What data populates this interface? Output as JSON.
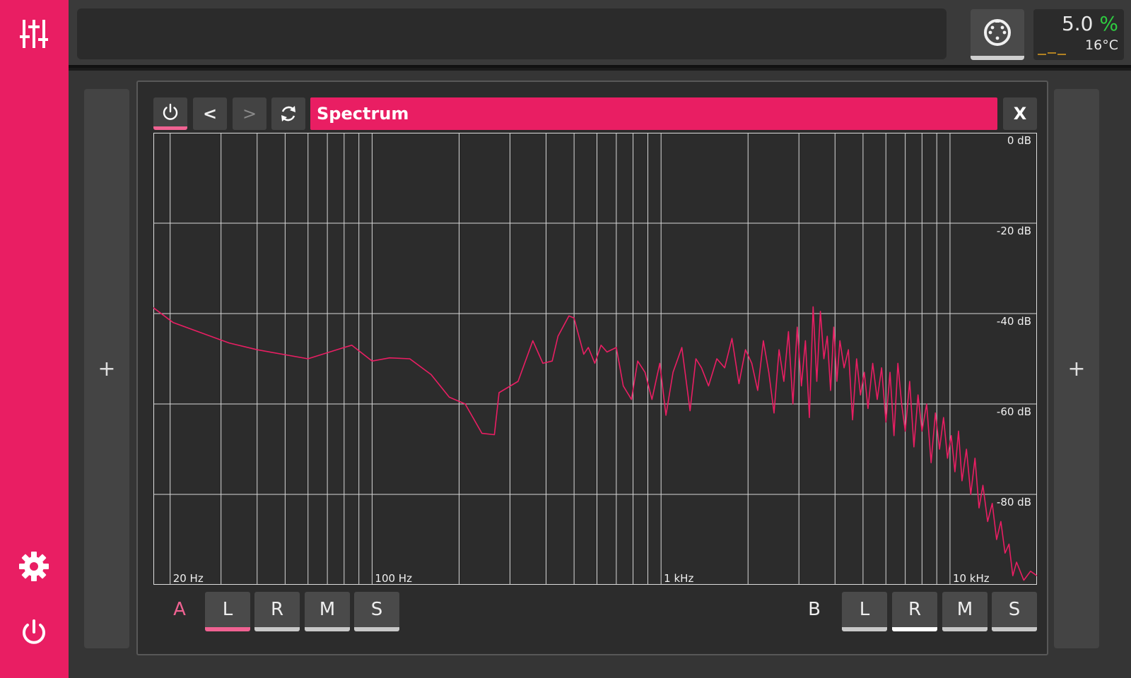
{
  "sidebar": {
    "mixer_icon": "sliders-icon",
    "settings_icon": "gear-icon",
    "power_icon": "power-icon"
  },
  "topbar": {
    "midi_icon": "midi-din-icon",
    "cpu_value": "5.0",
    "cpu_unit": "%",
    "temperature": "16°C"
  },
  "panel": {
    "add_left": "+",
    "add_right": "+",
    "prev_label": "<",
    "next_label": ">",
    "title": "Spectrum",
    "close_label": "X",
    "power_icon": "power-icon",
    "reload_icon": "refresh-icon"
  },
  "channels": {
    "a_label": "A",
    "b_label": "B",
    "a_buttons": [
      "L",
      "R",
      "M",
      "S"
    ],
    "b_buttons": [
      "L",
      "R",
      "M",
      "S"
    ],
    "a_selected": "L",
    "b_selected": "R"
  },
  "colors": {
    "accent": "#e91e63",
    "cpu_green": "#2ecc40"
  },
  "chart_data": {
    "type": "line",
    "x_scale": "log",
    "xlim": [
      17.5,
      20000
    ],
    "ylim": [
      -100,
      0
    ],
    "x_tick_labels": [
      {
        "value": 20,
        "label": "20 Hz"
      },
      {
        "value": 100,
        "label": "100 Hz"
      },
      {
        "value": 1000,
        "label": "1 kHz"
      },
      {
        "value": 10000,
        "label": "10 kHz"
      }
    ],
    "y_tick_labels": [
      {
        "value": 0,
        "label": "0 dB"
      },
      {
        "value": -20,
        "label": "-20 dB"
      },
      {
        "value": -40,
        "label": "-40 dB"
      },
      {
        "value": -60,
        "label": "-60 dB"
      },
      {
        "value": -80,
        "label": "-80 dB"
      }
    ],
    "grid": true,
    "series": [
      {
        "color": "#e91e63",
        "points": [
          [
            17.5,
            -38.7
          ],
          [
            20.5,
            -42
          ],
          [
            25,
            -44
          ],
          [
            32,
            -46.5
          ],
          [
            40,
            -48
          ],
          [
            60,
            -50
          ],
          [
            80,
            -47.5
          ],
          [
            85,
            -47
          ],
          [
            100,
            -50.5
          ],
          [
            115,
            -49.8
          ],
          [
            135,
            -50
          ],
          [
            160,
            -53.5
          ],
          [
            185,
            -58.5
          ],
          [
            210,
            -60
          ],
          [
            240,
            -66.5
          ],
          [
            265,
            -66.8
          ],
          [
            275,
            -57.5
          ],
          [
            320,
            -55
          ],
          [
            360,
            -46
          ],
          [
            390,
            -51
          ],
          [
            420,
            -50.5
          ],
          [
            440,
            -45
          ],
          [
            480,
            -40.5
          ],
          [
            500,
            -41
          ],
          [
            540,
            -49
          ],
          [
            560,
            -47.5
          ],
          [
            590,
            -51
          ],
          [
            620,
            -47
          ],
          [
            650,
            -48.5
          ],
          [
            700,
            -47.5
          ],
          [
            740,
            -56
          ],
          [
            790,
            -59
          ],
          [
            830,
            -50.5
          ],
          [
            880,
            -53
          ],
          [
            930,
            -59
          ],
          [
            990,
            -51
          ],
          [
            1040,
            -62.5
          ],
          [
            1100,
            -53
          ],
          [
            1180,
            -47.5
          ],
          [
            1260,
            -61.5
          ],
          [
            1320,
            -50
          ],
          [
            1380,
            -52
          ],
          [
            1460,
            -56
          ],
          [
            1560,
            -50
          ],
          [
            1660,
            -52
          ],
          [
            1760,
            -45.5
          ],
          [
            1860,
            -55.5
          ],
          [
            1960,
            -48
          ],
          [
            2060,
            -51
          ],
          [
            2160,
            -57
          ],
          [
            2260,
            -46
          ],
          [
            2360,
            -53
          ],
          [
            2460,
            -62
          ],
          [
            2560,
            -48
          ],
          [
            2660,
            -55
          ],
          [
            2760,
            -44
          ],
          [
            2860,
            -60
          ],
          [
            2960,
            -43
          ],
          [
            3060,
            -56
          ],
          [
            3160,
            -46
          ],
          [
            3260,
            -63
          ],
          [
            3360,
            -38.5
          ],
          [
            3460,
            -55
          ],
          [
            3560,
            -39.5
          ],
          [
            3660,
            -50
          ],
          [
            3760,
            -45
          ],
          [
            3860,
            -57
          ],
          [
            3960,
            -43
          ],
          [
            4060,
            -55
          ],
          [
            4160,
            -46
          ],
          [
            4300,
            -52
          ],
          [
            4450,
            -48
          ],
          [
            4600,
            -63.5
          ],
          [
            4750,
            -50
          ],
          [
            4900,
            -58
          ],
          [
            5050,
            -53
          ],
          [
            5200,
            -61
          ],
          [
            5400,
            -51
          ],
          [
            5600,
            -59
          ],
          [
            5800,
            -52
          ],
          [
            6000,
            -64
          ],
          [
            6200,
            -53
          ],
          [
            6400,
            -67
          ],
          [
            6600,
            -51
          ],
          [
            6800,
            -60
          ],
          [
            7000,
            -66
          ],
          [
            7250,
            -55
          ],
          [
            7500,
            -69.5
          ],
          [
            7750,
            -58
          ],
          [
            8000,
            -66
          ],
          [
            8300,
            -60
          ],
          [
            8600,
            -73
          ],
          [
            8900,
            -62
          ],
          [
            9200,
            -70
          ],
          [
            9500,
            -63
          ],
          [
            9800,
            -72
          ],
          [
            10100,
            -67
          ],
          [
            10400,
            -75
          ],
          [
            10700,
            -66
          ],
          [
            11000,
            -77
          ],
          [
            11400,
            -70
          ],
          [
            11800,
            -80
          ],
          [
            12200,
            -72
          ],
          [
            12600,
            -83
          ],
          [
            13000,
            -78
          ],
          [
            13500,
            -86
          ],
          [
            14000,
            -82
          ],
          [
            14500,
            -90
          ],
          [
            15000,
            -86
          ],
          [
            15500,
            -93
          ],
          [
            16000,
            -91
          ],
          [
            16500,
            -98
          ],
          [
            17000,
            -95
          ],
          [
            18000,
            -99
          ],
          [
            19000,
            -97
          ],
          [
            20000,
            -98
          ]
        ]
      }
    ]
  }
}
